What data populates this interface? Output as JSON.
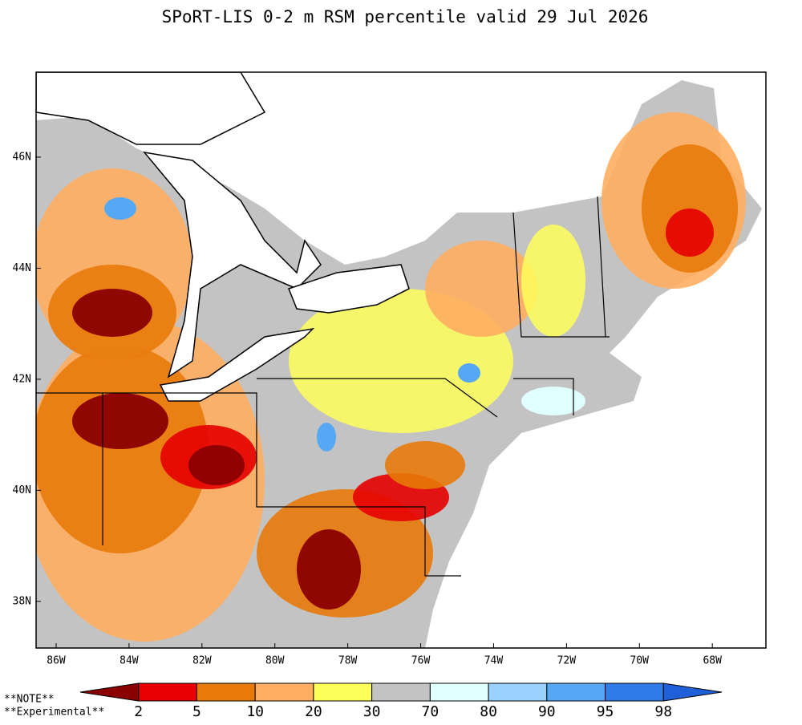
{
  "title": "SPoRT-LIS 0-2 m RSM percentile valid 29 Jul 2026",
  "map": {
    "xlim": [
      -86.55,
      -66.53
    ],
    "ylim": [
      37.16,
      47.53
    ],
    "xticks": [
      {
        "value": -86,
        "label": "86W"
      },
      {
        "value": -84,
        "label": "84W"
      },
      {
        "value": -82,
        "label": "82W"
      },
      {
        "value": -80,
        "label": "80W"
      },
      {
        "value": -78,
        "label": "78W"
      },
      {
        "value": -76,
        "label": "76W"
      },
      {
        "value": -74,
        "label": "74W"
      },
      {
        "value": -72,
        "label": "72W"
      },
      {
        "value": -70,
        "label": "70W"
      },
      {
        "value": -68,
        "label": "68W"
      }
    ],
    "yticks": [
      {
        "value": 38,
        "label": "38N"
      },
      {
        "value": 40,
        "label": "40N"
      },
      {
        "value": 42,
        "label": "42N"
      },
      {
        "value": 44,
        "label": "44N"
      },
      {
        "value": 46,
        "label": "46N"
      }
    ]
  },
  "colorbar": {
    "levels": [
      2,
      5,
      10,
      20,
      30,
      70,
      80,
      90,
      95,
      98
    ],
    "colors": [
      "#8b0000",
      "#e60000",
      "#e87a0a",
      "#ffae60",
      "#ffff5a",
      "#c3c3c3",
      "#e0ffff",
      "#9ad2ff",
      "#56a8f5",
      "#2e7bea",
      "#1f5fd8"
    ]
  },
  "notes": [
    "**NOTE**",
    "**Experimental**"
  ]
}
